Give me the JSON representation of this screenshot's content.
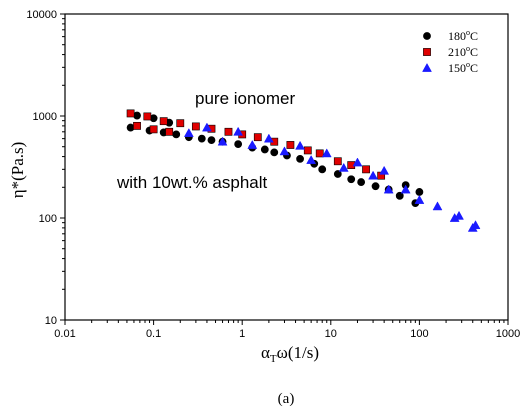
{
  "chart_data": {
    "type": "scatter",
    "xscale": "log",
    "yscale": "log",
    "xlim": [
      0.01,
      1000
    ],
    "ylim": [
      10,
      10000
    ],
    "xticks": [
      0.01,
      0.1,
      1,
      10,
      100,
      1000
    ],
    "xtick_labels": [
      "0.01",
      "0.1",
      "1",
      "10",
      "100",
      "1000"
    ],
    "yticks": [
      10,
      100,
      1000,
      10000
    ],
    "ytick_labels": [
      "10",
      "100",
      "1000",
      "10000"
    ],
    "ylabel": "η*(Pa.s)",
    "xlabel_main": "α",
    "xlabel_sub": "T",
    "xlabel_rest": "ω(1/s)",
    "caption": "(a)",
    "annotations": [
      "pure ionomer",
      "with 10wt.% asphalt"
    ],
    "legend_position": "top-right",
    "series": [
      {
        "name": "180°C",
        "name_parts": [
          "180",
          "o",
          "C"
        ],
        "marker": "circle",
        "color": "#000000",
        "points": [
          [
            0.055,
            770
          ],
          [
            0.065,
            1010
          ],
          [
            0.09,
            720
          ],
          [
            0.1,
            950
          ],
          [
            0.13,
            690
          ],
          [
            0.15,
            860
          ],
          [
            0.18,
            660
          ],
          [
            0.25,
            620
          ],
          [
            0.35,
            600
          ],
          [
            0.45,
            580
          ],
          [
            0.6,
            560
          ],
          [
            0.9,
            530
          ],
          [
            1.3,
            490
          ],
          [
            1.8,
            470
          ],
          [
            2.3,
            440
          ],
          [
            3.2,
            410
          ],
          [
            4.5,
            380
          ],
          [
            6.5,
            340
          ],
          [
            8,
            300
          ],
          [
            12,
            270
          ],
          [
            17,
            240
          ],
          [
            22,
            225
          ],
          [
            32,
            205
          ],
          [
            45,
            190
          ],
          [
            60,
            165
          ],
          [
            70,
            210
          ],
          [
            90,
            140
          ],
          [
            100,
            180
          ]
        ]
      },
      {
        "name": "210°C",
        "name_parts": [
          "210",
          "o",
          "C"
        ],
        "marker": "square",
        "color": "#e00000",
        "points": [
          [
            0.055,
            1060
          ],
          [
            0.065,
            800
          ],
          [
            0.085,
            990
          ],
          [
            0.1,
            740
          ],
          [
            0.13,
            890
          ],
          [
            0.15,
            700
          ],
          [
            0.2,
            850
          ],
          [
            0.3,
            790
          ],
          [
            0.45,
            750
          ],
          [
            0.7,
            700
          ],
          [
            1,
            660
          ],
          [
            1.5,
            620
          ],
          [
            2.3,
            560
          ],
          [
            3.5,
            520
          ],
          [
            5.5,
            460
          ],
          [
            7.5,
            430
          ],
          [
            12,
            360
          ],
          [
            17,
            330
          ],
          [
            25,
            300
          ],
          [
            37,
            260
          ]
        ]
      },
      {
        "name": "150°C",
        "name_parts": [
          "150",
          "o",
          "C"
        ],
        "marker": "triangle",
        "color": "#1a1aff",
        "points": [
          [
            0.25,
            680
          ],
          [
            0.4,
            770
          ],
          [
            0.6,
            560
          ],
          [
            0.9,
            700
          ],
          [
            1.3,
            520
          ],
          [
            2,
            600
          ],
          [
            3,
            450
          ],
          [
            4.5,
            510
          ],
          [
            6,
            370
          ],
          [
            9,
            430
          ],
          [
            14,
            310
          ],
          [
            20,
            350
          ],
          [
            30,
            260
          ],
          [
            40,
            290
          ],
          [
            45,
            190
          ],
          [
            70,
            190
          ],
          [
            100,
            150
          ],
          [
            160,
            130
          ],
          [
            250,
            100
          ],
          [
            280,
            105
          ],
          [
            400,
            80
          ],
          [
            430,
            85
          ]
        ]
      }
    ]
  }
}
